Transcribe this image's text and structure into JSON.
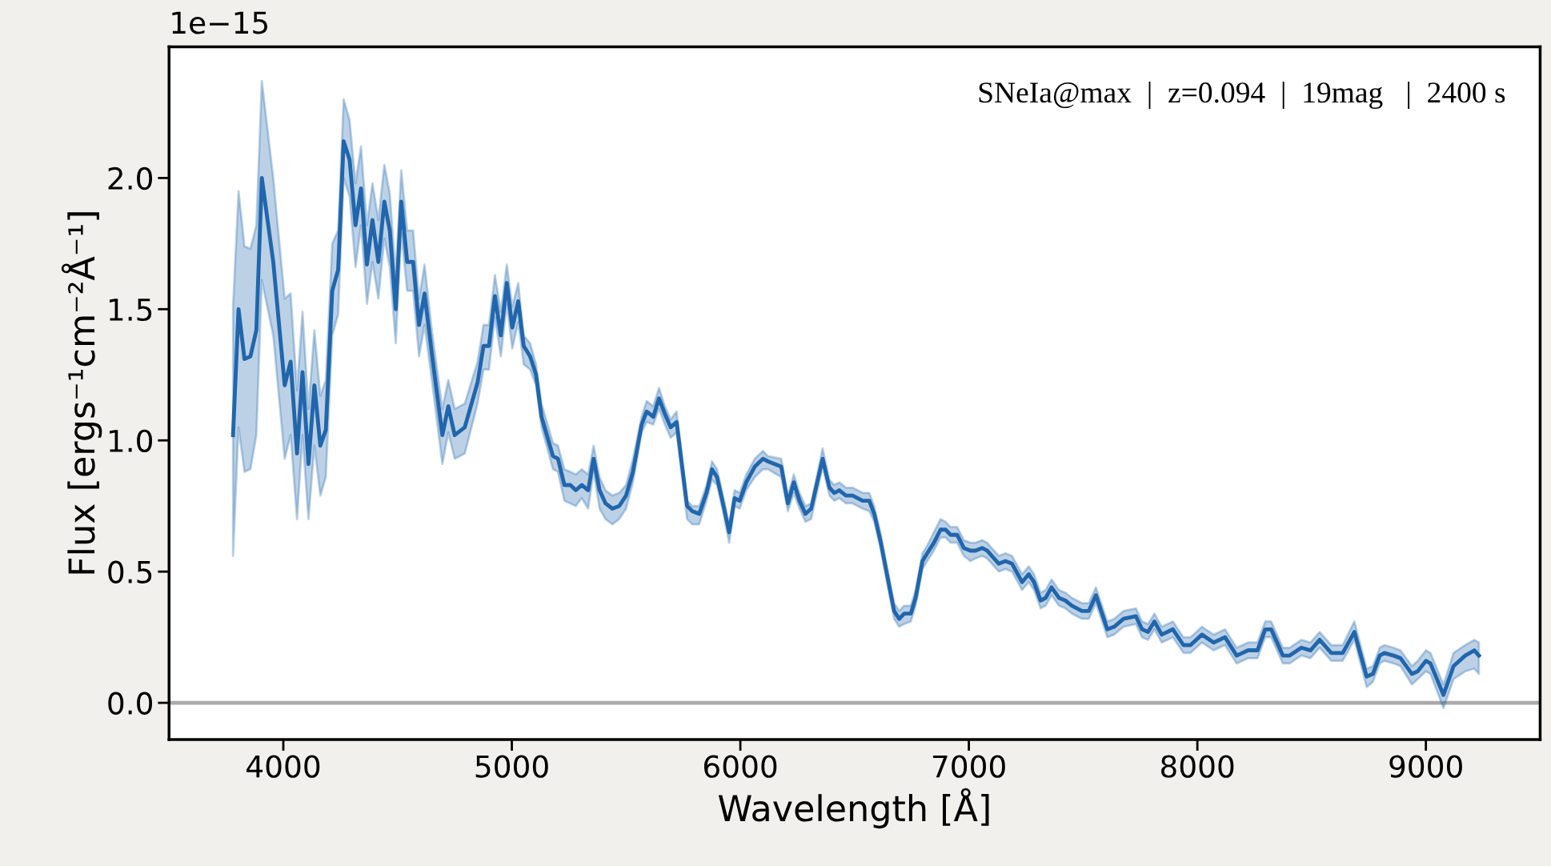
{
  "chart_data": {
    "type": "line",
    "xlabel": "Wavelength [Å]",
    "ylabel": "Flux [ergs⁻¹cm⁻²Å⁻¹]",
    "annotations": [
      "SNeIa@max  |  z=0.094  |  19mag   |  2400 s",
      "1e−15"
    ],
    "xlim": [
      3500,
      9500
    ],
    "xticks": [
      4000,
      5000,
      6000,
      7000,
      8000,
      9000
    ],
    "ylim": [
      -0.14,
      2.5
    ],
    "yticks": [
      {
        "value": 0,
        "label": "0.0"
      },
      {
        "value": 0.5,
        "label": "0.5"
      },
      {
        "value": 1,
        "label": "1.0"
      },
      {
        "value": 1.5,
        "label": "1.5"
      },
      {
        "value": 2,
        "label": "2.0"
      }
    ],
    "grid": false,
    "legend": false,
    "ref_lines": [
      {
        "axis": "y",
        "value": 0,
        "color": "#aaaaaa"
      }
    ],
    "series": [
      {
        "color": "#2166ac",
        "x": [
          3780,
          3804,
          3830,
          3856,
          3882,
          3906,
          3956,
          4006,
          4032,
          4060,
          4084,
          4110,
          4136,
          4162,
          4186,
          4214,
          4240,
          4264,
          4290,
          4316,
          4340,
          4366,
          4390,
          4416,
          4442,
          4466,
          4492,
          4516,
          4542,
          4568,
          4594,
          4618,
          4650,
          4696,
          4722,
          4750,
          4794,
          4850,
          4876,
          4900,
          4926,
          4952,
          4978,
          5002,
          5028,
          5052,
          5080,
          5106,
          5130,
          5180,
          5202,
          5230,
          5256,
          5280,
          5306,
          5334,
          5358,
          5384,
          5410,
          5440,
          5470,
          5500,
          5530,
          5568,
          5590,
          5619,
          5644,
          5670,
          5695,
          5721,
          5767,
          5790,
          5820,
          5852,
          5876,
          5898,
          5924,
          5951,
          5975,
          5997,
          6026,
          6063,
          6099,
          6121,
          6179,
          6208,
          6234,
          6259,
          6285,
          6310,
          6360,
          6390,
          6411,
          6433,
          6462,
          6491,
          6535,
          6564,
          6586,
          6615,
          6637,
          6673,
          6695,
          6717,
          6746,
          6767,
          6797,
          6818,
          6847,
          6876,
          6898,
          6920,
          6949,
          6978,
          7007,
          7029,
          7058,
          7080,
          7131,
          7160,
          7189,
          7233,
          7262,
          7285,
          7314,
          7336,
          7362,
          7394,
          7422,
          7451,
          7495,
          7525,
          7556,
          7606,
          7636,
          7677,
          7731,
          7758,
          7784,
          7812,
          7844,
          7893,
          7939,
          7970,
          8020,
          8071,
          8121,
          8172,
          8222,
          8263,
          8297,
          8323,
          8374,
          8404,
          8455,
          8495,
          8535,
          8586,
          8636,
          8687,
          8741,
          8768,
          8798,
          8818,
          8859,
          8889,
          8939,
          8964,
          9000,
          9020,
          9077,
          9121,
          9172,
          9212,
          9232
        ],
        "values": [
          1.02,
          1.5,
          1.31,
          1.32,
          1.42,
          2.0,
          1.68,
          1.21,
          1.3,
          0.95,
          1.26,
          0.91,
          1.21,
          0.98,
          1.04,
          1.57,
          1.65,
          2.14,
          2.07,
          1.82,
          1.96,
          1.67,
          1.84,
          1.68,
          1.91,
          1.8,
          1.5,
          1.91,
          1.68,
          1.68,
          1.44,
          1.56,
          1.33,
          1.02,
          1.13,
          1.02,
          1.05,
          1.22,
          1.36,
          1.36,
          1.55,
          1.4,
          1.6,
          1.43,
          1.53,
          1.36,
          1.32,
          1.25,
          1.09,
          0.94,
          0.93,
          0.83,
          0.83,
          0.81,
          0.83,
          0.81,
          0.93,
          0.81,
          0.76,
          0.74,
          0.75,
          0.79,
          0.88,
          1.06,
          1.11,
          1.09,
          1.16,
          1.1,
          1.05,
          1.07,
          0.75,
          0.73,
          0.72,
          0.8,
          0.89,
          0.86,
          0.76,
          0.65,
          0.78,
          0.77,
          0.84,
          0.9,
          0.93,
          0.92,
          0.9,
          0.76,
          0.84,
          0.77,
          0.72,
          0.74,
          0.93,
          0.82,
          0.8,
          0.81,
          0.79,
          0.79,
          0.77,
          0.77,
          0.72,
          0.61,
          0.51,
          0.35,
          0.32,
          0.34,
          0.34,
          0.4,
          0.54,
          0.57,
          0.61,
          0.66,
          0.66,
          0.64,
          0.64,
          0.59,
          0.58,
          0.58,
          0.59,
          0.58,
          0.53,
          0.54,
          0.53,
          0.46,
          0.49,
          0.46,
          0.39,
          0.4,
          0.44,
          0.4,
          0.39,
          0.37,
          0.35,
          0.35,
          0.41,
          0.28,
          0.29,
          0.32,
          0.33,
          0.28,
          0.27,
          0.31,
          0.26,
          0.28,
          0.22,
          0.22,
          0.26,
          0.23,
          0.25,
          0.18,
          0.2,
          0.2,
          0.28,
          0.28,
          0.18,
          0.18,
          0.21,
          0.2,
          0.24,
          0.19,
          0.19,
          0.27,
          0.1,
          0.11,
          0.18,
          0.19,
          0.18,
          0.17,
          0.11,
          0.12,
          0.16,
          0.15,
          0.03,
          0.14,
          0.18,
          0.2,
          0.18
        ],
        "lower": [
          0.56,
          1.05,
          0.88,
          0.89,
          1.02,
          1.61,
          1.4,
          0.93,
          1.02,
          0.7,
          1.02,
          0.7,
          0.98,
          0.79,
          0.86,
          1.4,
          1.48,
          2.0,
          1.93,
          1.66,
          1.82,
          1.52,
          1.68,
          1.54,
          1.77,
          1.66,
          1.37,
          1.79,
          1.57,
          1.57,
          1.32,
          1.44,
          1.23,
          0.91,
          1.03,
          0.93,
          0.95,
          1.14,
          1.27,
          1.27,
          1.47,
          1.32,
          1.52,
          1.35,
          1.45,
          1.29,
          1.27,
          1.21,
          1.05,
          0.89,
          0.88,
          0.77,
          0.76,
          0.75,
          0.78,
          0.74,
          0.88,
          0.74,
          0.7,
          0.68,
          0.7,
          0.74,
          0.84,
          1.03,
          1.07,
          1.06,
          1.12,
          1.06,
          1.01,
          1.03,
          0.7,
          0.68,
          0.68,
          0.77,
          0.85,
          0.83,
          0.73,
          0.61,
          0.75,
          0.74,
          0.81,
          0.86,
          0.89,
          0.89,
          0.86,
          0.73,
          0.8,
          0.74,
          0.69,
          0.7,
          0.9,
          0.79,
          0.77,
          0.78,
          0.76,
          0.76,
          0.74,
          0.73,
          0.69,
          0.58,
          0.48,
          0.32,
          0.29,
          0.3,
          0.31,
          0.37,
          0.51,
          0.54,
          0.58,
          0.63,
          0.63,
          0.61,
          0.61,
          0.56,
          0.54,
          0.55,
          0.56,
          0.55,
          0.5,
          0.51,
          0.5,
          0.43,
          0.46,
          0.43,
          0.36,
          0.37,
          0.41,
          0.37,
          0.36,
          0.34,
          0.32,
          0.32,
          0.38,
          0.25,
          0.26,
          0.29,
          0.3,
          0.25,
          0.24,
          0.28,
          0.23,
          0.25,
          0.19,
          0.19,
          0.23,
          0.2,
          0.22,
          0.15,
          0.17,
          0.17,
          0.25,
          0.25,
          0.15,
          0.15,
          0.18,
          0.17,
          0.21,
          0.16,
          0.16,
          0.24,
          0.06,
          0.08,
          0.15,
          0.16,
          0.15,
          0.14,
          0.07,
          0.09,
          0.12,
          0.11,
          -0.02,
          0.09,
          0.12,
          0.13,
          0.11
        ],
        "upper": [
          1.51,
          1.95,
          1.74,
          1.73,
          1.82,
          2.37,
          2.0,
          1.54,
          1.56,
          1.19,
          1.49,
          1.12,
          1.42,
          1.17,
          1.23,
          1.75,
          1.8,
          2.3,
          2.22,
          1.98,
          2.12,
          1.82,
          1.98,
          1.84,
          2.05,
          1.94,
          1.63,
          2.03,
          1.8,
          1.8,
          1.54,
          1.67,
          1.42,
          1.12,
          1.23,
          1.12,
          1.14,
          1.3,
          1.44,
          1.44,
          1.63,
          1.49,
          1.67,
          1.51,
          1.6,
          1.4,
          1.37,
          1.29,
          1.14,
          0.99,
          0.98,
          0.89,
          0.88,
          0.87,
          0.89,
          0.87,
          0.98,
          0.86,
          0.81,
          0.79,
          0.8,
          0.83,
          0.93,
          1.09,
          1.15,
          1.13,
          1.2,
          1.13,
          1.08,
          1.11,
          0.77,
          0.75,
          0.75,
          0.83,
          0.92,
          0.89,
          0.79,
          0.68,
          0.81,
          0.8,
          0.87,
          0.93,
          0.96,
          0.94,
          0.93,
          0.79,
          0.87,
          0.8,
          0.75,
          0.76,
          0.97,
          0.85,
          0.83,
          0.84,
          0.82,
          0.82,
          0.8,
          0.8,
          0.75,
          0.64,
          0.54,
          0.38,
          0.35,
          0.37,
          0.37,
          0.43,
          0.57,
          0.6,
          0.65,
          0.7,
          0.69,
          0.67,
          0.67,
          0.62,
          0.61,
          0.61,
          0.62,
          0.61,
          0.56,
          0.57,
          0.56,
          0.49,
          0.52,
          0.49,
          0.42,
          0.43,
          0.47,
          0.43,
          0.42,
          0.4,
          0.38,
          0.38,
          0.44,
          0.31,
          0.32,
          0.35,
          0.36,
          0.31,
          0.3,
          0.34,
          0.29,
          0.31,
          0.25,
          0.25,
          0.29,
          0.26,
          0.28,
          0.21,
          0.23,
          0.23,
          0.31,
          0.31,
          0.21,
          0.21,
          0.24,
          0.23,
          0.27,
          0.22,
          0.22,
          0.31,
          0.13,
          0.14,
          0.21,
          0.22,
          0.21,
          0.2,
          0.14,
          0.16,
          0.2,
          0.19,
          0.07,
          0.19,
          0.22,
          0.24,
          0.23
        ]
      }
    ]
  }
}
